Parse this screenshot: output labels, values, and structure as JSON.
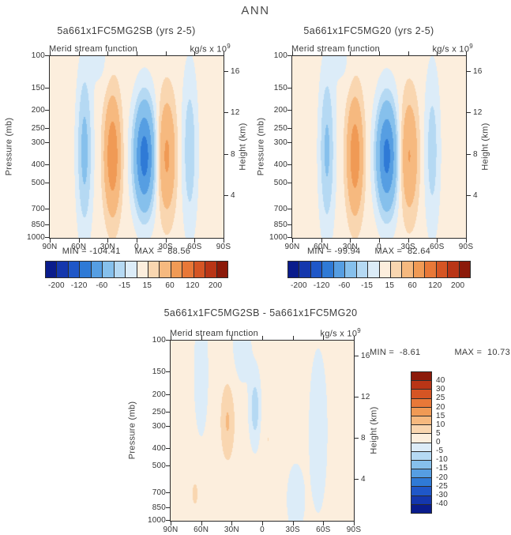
{
  "page": {
    "title": "ANN"
  },
  "palette": [
    "#0a1c8c",
    "#1437ad",
    "#1f57c8",
    "#2f7ad6",
    "#569ee2",
    "#86c0ec",
    "#b5d9f3",
    "#dcecf8",
    "#fceedd",
    "#f9d6b0",
    "#f6b97f",
    "#f09a55",
    "#e87838",
    "#d55524",
    "#b93516",
    "#8c1a0a"
  ],
  "chart_data": [
    {
      "type": "heatmap",
      "title": "5a661x1FC5MG2SB (yrs 2-5)",
      "field_label": "Merid stream function",
      "units_base": "kg/s x 10",
      "units_exp": "9",
      "ylabel_left": "Pressure (mb)",
      "ylabel_right": "Height (km)",
      "x_ticks": [
        "90N",
        "60N",
        "30N",
        "0",
        "30S",
        "60S",
        "90S"
      ],
      "y_ticks_pressure": [
        100,
        150,
        200,
        250,
        300,
        400,
        500,
        700,
        850,
        1000
      ],
      "y_ticks_height": [
        16,
        12,
        8,
        4
      ],
      "min": -104.41,
      "max": 88.56,
      "min_text": "MIN = -104.41",
      "max_text": "MAX =  88.56",
      "levels": [
        -200,
        -160,
        -120,
        -90,
        -60,
        -30,
        -15,
        0,
        15,
        30,
        60,
        90,
        120,
        160,
        200
      ],
      "colorbar_labels": [
        -200,
        -120,
        -60,
        -15,
        15,
        60,
        120,
        200
      ],
      "field_model": {
        "background": 8,
        "blobs": [
          [
            25,
            8,
            0.55,
            0.3,
            78
          ],
          [
            -8,
            11,
            0.55,
            0.3,
            -112
          ],
          [
            -31,
            9,
            0.55,
            0.3,
            58
          ],
          [
            54,
            8,
            0.52,
            0.45,
            -45
          ],
          [
            -55,
            8,
            0.52,
            0.45,
            -34
          ],
          [
            38,
            10,
            0.03,
            0.15,
            -12
          ]
        ]
      }
    },
    {
      "type": "heatmap",
      "title": "5a661x1FC5MG20 (yrs 2-5)",
      "field_label": "Merid stream function",
      "units_base": "kg/s x 10",
      "units_exp": "9",
      "ylabel_left": "Pressure (mb)",
      "ylabel_right": "Height (km)",
      "x_ticks": [
        "90N",
        "60N",
        "30N",
        "0",
        "30S",
        "60S",
        "90S"
      ],
      "y_ticks_pressure": [
        100,
        150,
        200,
        250,
        300,
        400,
        500,
        700,
        850,
        1000
      ],
      "y_ticks_height": [
        16,
        12,
        8,
        4
      ],
      "min": -99.94,
      "max": 82.64,
      "min_text": "MIN = -99.94",
      "max_text": "MAX =  82.64",
      "levels": [
        -200,
        -160,
        -120,
        -90,
        -60,
        -30,
        -15,
        0,
        15,
        30,
        60,
        90,
        120,
        160,
        200
      ],
      "colorbar_labels": [
        -200,
        -120,
        -60,
        -15,
        15,
        60,
        120,
        200
      ],
      "field_model": {
        "background": 8,
        "blobs": [
          [
            25,
            8,
            0.55,
            0.3,
            73
          ],
          [
            -8,
            11,
            0.55,
            0.3,
            -108
          ],
          [
            -31,
            9,
            0.55,
            0.3,
            54
          ],
          [
            54,
            8,
            0.52,
            0.45,
            -42
          ],
          [
            -55,
            8,
            0.52,
            0.45,
            -31
          ],
          [
            38,
            10,
            0.03,
            0.15,
            -11
          ]
        ]
      }
    },
    {
      "type": "heatmap",
      "title": "5a661x1FC5MG2SB - 5a661x1FC5MG20",
      "field_label": "Merid stream function",
      "units_base": "kg/s x 10",
      "units_exp": "9",
      "ylabel_left": "Pressure (mb)",
      "ylabel_right": "Height (km)",
      "x_ticks": [
        "90N",
        "60N",
        "30N",
        "0",
        "30S",
        "60S",
        "90S"
      ],
      "y_ticks_pressure": [
        100,
        150,
        200,
        250,
        300,
        400,
        500,
        700,
        850,
        1000
      ],
      "y_ticks_height": [
        16,
        12,
        8,
        4
      ],
      "min": -8.61,
      "max": 10.73,
      "min_text": "MIN =  -8.61",
      "max_text": "MAX =  10.73",
      "levels": [
        -40,
        -30,
        -25,
        -20,
        -15,
        -10,
        -5,
        0,
        5,
        10,
        15,
        20,
        25,
        30,
        40
      ],
      "colorbar_labels": [
        -40,
        -30,
        -25,
        -20,
        -15,
        -10,
        -5,
        0,
        5,
        10,
        15,
        20,
        25,
        30,
        40
      ],
      "field_model": {
        "background": 1.5,
        "blobs": [
          [
            60,
            6,
            0.18,
            0.3,
            -6
          ],
          [
            34,
            7,
            0.45,
            0.22,
            9
          ],
          [
            7,
            5,
            0.38,
            0.18,
            -10
          ],
          [
            -6,
            6,
            0.55,
            0.25,
            3.5
          ],
          [
            -55,
            8,
            0.5,
            0.4,
            -5.5
          ],
          [
            -33,
            8,
            0.88,
            0.18,
            -5
          ],
          [
            66,
            7,
            0.85,
            0.15,
            4
          ],
          [
            20,
            10,
            0.05,
            0.2,
            -3.5
          ],
          [
            -15,
            8,
            0.15,
            0.2,
            2.5
          ]
        ]
      }
    }
  ]
}
